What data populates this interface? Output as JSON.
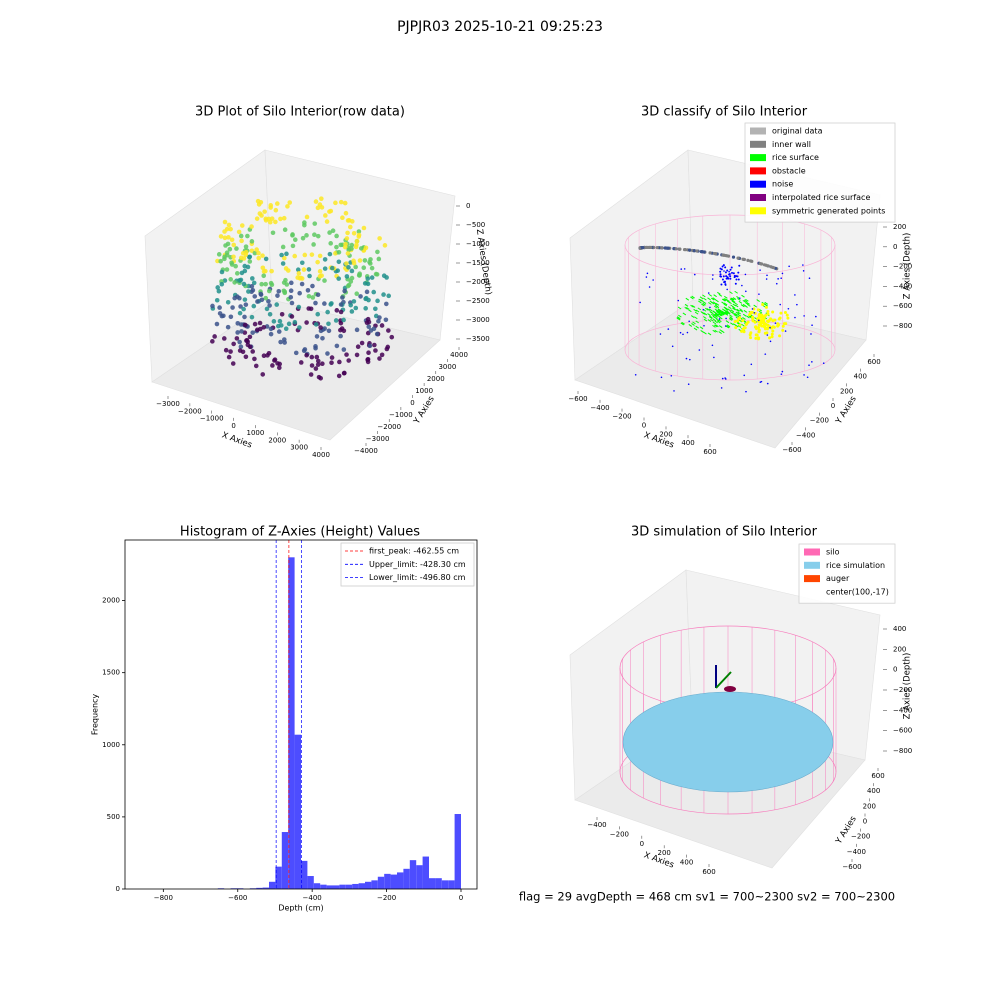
{
  "title": "PJPJR03 2025-10-21 09:25:23",
  "annotation": "flag = 29  avgDepth = 468 cm  sv1 = 700~2300  sv2 = 700~2300",
  "chart_data": [
    {
      "type": "scatter3d",
      "title": "3D Plot of Silo Interior(row data)",
      "x_label": "X Axies",
      "y_label": "Y Axies",
      "z_label": "Z Axies (Depth)",
      "xticks": [
        {
          "value": -3000,
          "label": "−3000"
        },
        {
          "value": -2000,
          "label": "−2000"
        },
        {
          "value": -1000,
          "label": "−1000"
        },
        0,
        1000,
        2000,
        3000,
        4000
      ],
      "yticks": [
        {
          "value": -4000,
          "label": "−4000"
        },
        {
          "value": -3000,
          "label": "−3000"
        },
        {
          "value": -2000,
          "label": "−2000"
        },
        {
          "value": -1000,
          "label": "−1000"
        },
        0,
        1000,
        2000,
        3000,
        4000
      ],
      "zticks": [
        0,
        {
          "value": -500,
          "label": "−500"
        },
        {
          "value": -1000,
          "label": "−1000"
        },
        {
          "value": -1500,
          "label": "−1500"
        },
        {
          "value": -2000,
          "label": "−2000"
        },
        {
          "value": -2500,
          "label": "−2500"
        },
        {
          "value": -3000,
          "label": "−3000"
        },
        {
          "value": -3500,
          "label": "−3500"
        }
      ]
    },
    {
      "type": "scatter3d",
      "title": "3D classify of Silo Interior",
      "x_label": "X Axies",
      "y_label": "Y Axies",
      "z_label": "Z Axies (Depth)",
      "xticks": [
        {
          "value": -600,
          "label": "−600"
        },
        {
          "value": -400,
          "label": "−400"
        },
        {
          "value": -200,
          "label": "−200"
        },
        0,
        200,
        400,
        600
      ],
      "yticks": [
        {
          "value": -600,
          "label": "−600"
        },
        {
          "value": -400,
          "label": "−400"
        },
        {
          "value": -200,
          "label": "−200"
        },
        0,
        200,
        400,
        600
      ],
      "zticks": [
        200,
        0,
        {
          "value": -200,
          "label": "−200"
        },
        {
          "value": -400,
          "label": "−400"
        },
        {
          "value": -600,
          "label": "−600"
        },
        {
          "value": -800,
          "label": "−800"
        }
      ],
      "legend": [
        {
          "name": "original data",
          "color": "#b3b3b3"
        },
        {
          "name": "inner wall",
          "color": "#808080"
        },
        {
          "name": "rice surface",
          "color": "#00ff00"
        },
        {
          "name": "obstacle",
          "color": "#ff0000"
        },
        {
          "name": "noise",
          "color": "#0000ff"
        },
        {
          "name": "interpolated rice surface",
          "color": "#800080"
        },
        {
          "name": "symmetric generated points",
          "color": "#ffff00"
        }
      ]
    },
    {
      "type": "histogram",
      "title": "Histogram of Z-Axies (Height) Values",
      "x_label": "Depth (cm)",
      "y_label": "Frequency",
      "color": "#4d4dff",
      "bins": [
        -860,
        -842.8,
        -825.6,
        -808.4,
        -791.2,
        -774,
        -756.8,
        -739.6,
        -722.4,
        -705.2,
        -688,
        -670.8,
        -653.6,
        -636.4,
        -619.2,
        -602,
        -584.8,
        -567.6,
        -550.4,
        -533.2,
        -516,
        -498.8,
        -481.6,
        -464.4,
        -447.2,
        -430,
        -412.8,
        -395.6,
        -378.4,
        -361.2,
        -344,
        -326.8,
        -309.6,
        -292.4,
        -275.2,
        -258,
        -240.8,
        -223.6,
        -206.4,
        -189.2,
        -172,
        -154.8,
        -137.6,
        -120.4,
        -103.2,
        -86,
        -68.8,
        -51.6,
        -34.4,
        -17.2,
        0
      ],
      "values": [
        0,
        0,
        0,
        0,
        0,
        0,
        0,
        0,
        0,
        0,
        0,
        0,
        5,
        0,
        5,
        5,
        0,
        5,
        8,
        10,
        50,
        155,
        395,
        2300,
        1070,
        195,
        90,
        40,
        30,
        25,
        25,
        30,
        30,
        35,
        40,
        50,
        60,
        85,
        105,
        100,
        115,
        140,
        200,
        165,
        225,
        75,
        75,
        60,
        60,
        520
      ],
      "xlim": [
        -903,
        43
      ],
      "ylim": [
        0,
        2420
      ],
      "xticks": [
        {
          "value": -800,
          "label": "−800"
        },
        {
          "value": -600,
          "label": "−600"
        },
        {
          "value": -400,
          "label": "−400"
        },
        {
          "value": -200,
          "label": "−200"
        },
        0
      ],
      "yticks": [
        0,
        500,
        1000,
        1500,
        2000
      ],
      "lines": [
        {
          "label": "first_peak: -462.55 cm",
          "value": -462.55,
          "color": "#ff0000"
        },
        {
          "label": "Upper_limit: -428.30 cm",
          "value": -428.3,
          "color": "#0000ff"
        },
        {
          "label": "Lower_limit: -496.80 cm",
          "value": -496.8,
          "color": "#0000ff"
        }
      ]
    },
    {
      "type": "surface3d",
      "title": "3D simulation of Silo Interior",
      "x_label": "X Axies",
      "y_label": "Y Axies",
      "z_label": "Z Axies (Depth)",
      "xticks": [
        {
          "value": -400,
          "label": "−400"
        },
        {
          "value": -200,
          "label": "−200"
        },
        0,
        200,
        400,
        600
      ],
      "yticks": [
        {
          "value": -600,
          "label": "−600"
        },
        {
          "value": -400,
          "label": "−400"
        },
        {
          "value": -200,
          "label": "−200"
        },
        0,
        200,
        400,
        600
      ],
      "zticks": [
        400,
        200,
        0,
        {
          "value": -200,
          "label": "−200"
        },
        {
          "value": -400,
          "label": "−400"
        },
        {
          "value": -600,
          "label": "−600"
        },
        {
          "value": -800,
          "label": "−800"
        }
      ],
      "legend": [
        {
          "name": "silo",
          "color": "#ff69b4"
        },
        {
          "name": "rice simulation",
          "color": "#87ceeb"
        },
        {
          "name": "auger",
          "color": "#ff4500"
        },
        {
          "name": "center(100,-17)",
          "color": "#ffffff"
        }
      ]
    }
  ]
}
